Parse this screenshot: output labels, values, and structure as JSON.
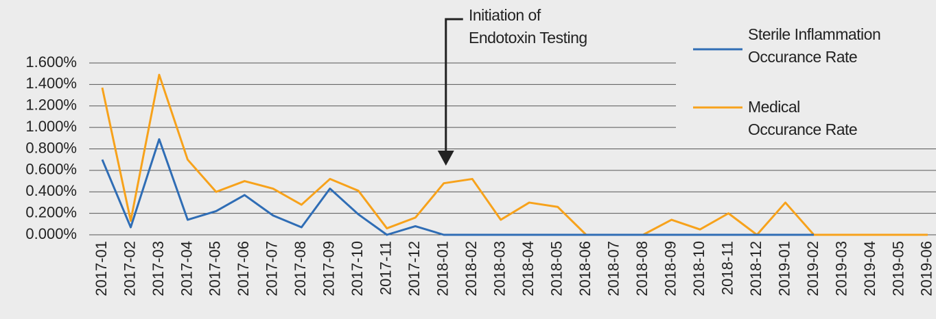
{
  "chart_data": {
    "type": "line",
    "categories": [
      "2017-01",
      "2017-02",
      "2017-03",
      "2017-04",
      "2017-05",
      "2017-06",
      "2017-07",
      "2017-08",
      "2017-09",
      "2017-10",
      "2017-11",
      "2017-12",
      "2018-01",
      "2018-02",
      "2018-03",
      "2018-04",
      "2018-05",
      "2018-06",
      "2018-07",
      "2018-08",
      "2018-09",
      "2018-10",
      "2018-11",
      "2018-12",
      "2019-01",
      "2019-02",
      "2019-03",
      "2019-04",
      "2019-05",
      "2019-06"
    ],
    "series": [
      {
        "name": "Sterile Inflammation Occurance Rate",
        "color": "#2f6db5",
        "values": [
          0.7,
          0.07,
          0.89,
          0.14,
          0.22,
          0.37,
          0.18,
          0.07,
          0.43,
          0.19,
          0.0,
          0.08,
          0.0,
          0.0,
          0.0,
          0.0,
          0.0,
          0.0,
          0.0,
          0.0,
          0.0,
          0.0,
          0.0,
          0.0,
          0.0,
          0.0,
          null,
          null,
          null,
          null
        ]
      },
      {
        "name": "Medical Occurance Rate",
        "color": "#f7a21b",
        "values": [
          1.37,
          0.13,
          1.49,
          0.7,
          0.4,
          0.5,
          0.43,
          0.28,
          0.52,
          0.41,
          0.06,
          0.16,
          0.48,
          0.52,
          0.14,
          0.3,
          0.26,
          0.0,
          0.0,
          0.0,
          0.14,
          0.05,
          0.2,
          0.0,
          0.3,
          0.0,
          0.0,
          0.0,
          0.0,
          0.0
        ]
      }
    ],
    "ylim": [
      0,
      1.6
    ],
    "yticks": [
      {
        "value": 0,
        "label": "0.000%"
      },
      {
        "value": 0.2,
        "label": "0.200%"
      },
      {
        "value": 0.4,
        "label": "0.400%"
      },
      {
        "value": 0.6,
        "label": "0.600%"
      },
      {
        "value": 0.8,
        "label": "0.800%"
      },
      {
        "value": 1.0,
        "label": "1.000%"
      },
      {
        "value": 1.2,
        "label": "1.200%"
      },
      {
        "value": 1.4,
        "label": "1.400%"
      },
      {
        "value": 1.6,
        "label": "1.600%"
      }
    ],
    "grid": true,
    "annotation": {
      "text": "Initiation of Endotoxin Testing",
      "category": "2018-01"
    },
    "legend": "upper right"
  }
}
